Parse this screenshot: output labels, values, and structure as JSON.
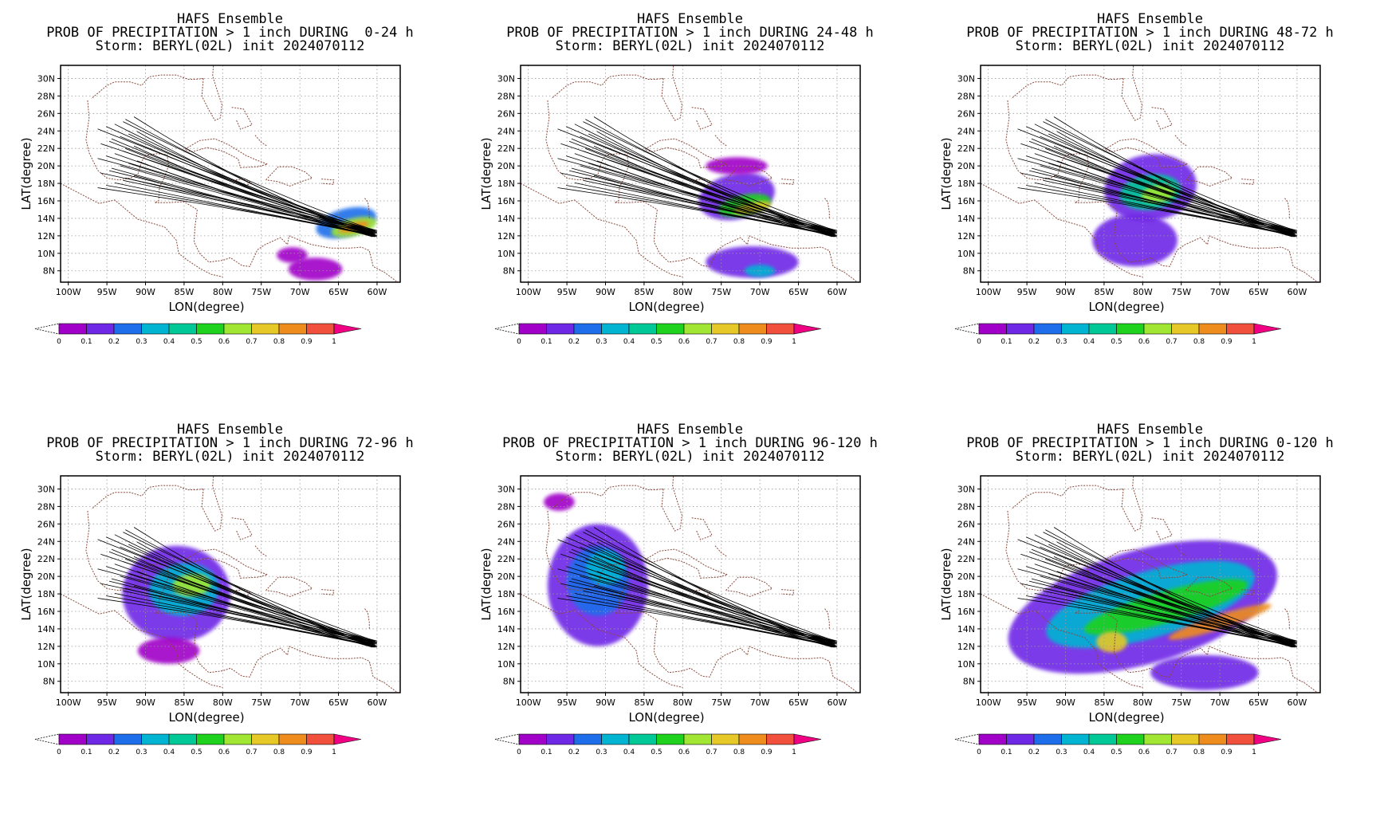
{
  "map": {
    "lon_ticks": [
      "100W",
      "95W",
      "90W",
      "85W",
      "80W",
      "75W",
      "70W",
      "65W",
      "60W"
    ],
    "lat_ticks": [
      "8N",
      "10N",
      "12N",
      "14N",
      "16N",
      "18N",
      "20N",
      "22N",
      "24N",
      "26N",
      "28N",
      "30N"
    ],
    "xlabel": "LON(degree)",
    "ylabel": "LAT(degree)",
    "lon_range": [
      -101,
      -57
    ],
    "lat_range": [
      6.7,
      31.5
    ],
    "colorbar": {
      "labels": [
        "0",
        "0.1",
        "0.2",
        "0.3",
        "0.4",
        "0.5",
        "0.6",
        "0.7",
        "0.8",
        "0.9",
        "1"
      ],
      "colors": [
        "#a000c8",
        "#6e28e6",
        "#1e6eeb",
        "#00b4d2",
        "#00c896",
        "#1ed21e",
        "#a0e632",
        "#e6c828",
        "#ee8c1e",
        "#f0503c",
        "#f00082"
      ]
    }
  },
  "panels": [
    {
      "title1": "HAFS Ensemble",
      "title2": "PROB OF PRECIPITATION > 1 inch DURING  0-24 h",
      "title3": "Storm: BERYL(02L) init 2024070112",
      "rain": [
        {
          "lon": -64,
          "lat": 13.5,
          "rlon": 4.0,
          "rlat": 1.6,
          "rot": -15,
          "p": 0.25
        },
        {
          "lon": -63,
          "lat": 13.0,
          "rlon": 3.0,
          "rlat": 1.0,
          "rot": -15,
          "p": 0.6
        },
        {
          "lon": -63,
          "lat": 13.0,
          "rlon": 2.0,
          "rlat": 0.5,
          "rot": -15,
          "p": 0.85
        },
        {
          "lon": -68,
          "lat": 8.2,
          "rlon": 3.5,
          "rlat": 1.3,
          "rot": 0,
          "p": 0.08
        },
        {
          "lon": -71,
          "lat": 9.8,
          "rlon": 2.0,
          "rlat": 0.9,
          "rot": 0,
          "p": 0.06
        }
      ]
    },
    {
      "title1": "HAFS Ensemble",
      "title2": "PROB OF PRECIPITATION > 1 inch DURING 24-48 h",
      "title3": "Storm: BERYL(02L) init 2024070112",
      "rain": [
        {
          "lon": -73,
          "lat": 16.5,
          "rlon": 5.0,
          "rlat": 2.6,
          "rot": -12,
          "p": 0.15
        },
        {
          "lon": -72,
          "lat": 15.5,
          "rlon": 3.5,
          "rlat": 1.2,
          "rot": -12,
          "p": 0.5
        },
        {
          "lon": -71,
          "lat": 15.2,
          "rlon": 2.5,
          "rlat": 0.6,
          "rot": -12,
          "p": 0.75
        },
        {
          "lon": -71,
          "lat": 9.0,
          "rlon": 6.0,
          "rlat": 1.8,
          "rot": 0,
          "p": 0.1
        },
        {
          "lon": -70,
          "lat": 8.0,
          "rlon": 2.0,
          "rlat": 0.7,
          "rot": 0,
          "p": 0.35
        },
        {
          "lon": -73,
          "lat": 20.0,
          "rlon": 4.0,
          "rlat": 1.0,
          "rot": 0,
          "p": 0.06
        }
      ]
    },
    {
      "title1": "HAFS Ensemble",
      "title2": "PROB OF PRECIPITATION > 1 inch DURING 48-72 h",
      "title3": "Storm: BERYL(02L) init 2024070112",
      "rain": [
        {
          "lon": -79,
          "lat": 17.5,
          "rlon": 6.0,
          "rlat": 3.8,
          "rot": -8,
          "p": 0.15
        },
        {
          "lon": -79,
          "lat": 17.0,
          "rlon": 4.0,
          "rlat": 2.0,
          "rot": -8,
          "p": 0.4
        },
        {
          "lon": -78,
          "lat": 16.8,
          "rlon": 2.2,
          "rlat": 1.0,
          "rot": -8,
          "p": 0.65
        },
        {
          "lon": -81,
          "lat": 11.5,
          "rlon": 5.5,
          "rlat": 3.0,
          "rot": 0,
          "p": 0.1
        }
      ]
    },
    {
      "title1": "HAFS Ensemble",
      "title2": "PROB OF PRECIPITATION > 1 inch DURING 72-96 h",
      "title3": "Storm: BERYL(02L) init 2024070112",
      "rain": [
        {
          "lon": -86,
          "lat": 18.0,
          "rlon": 7.0,
          "rlat": 5.5,
          "rot": 0,
          "p": 0.12
        },
        {
          "lon": -85,
          "lat": 18.5,
          "rlon": 4.5,
          "rlat": 3.0,
          "rot": -5,
          "p": 0.35
        },
        {
          "lon": -84,
          "lat": 19.0,
          "rlon": 2.5,
          "rlat": 1.3,
          "rot": -5,
          "p": 0.6
        },
        {
          "lon": -87,
          "lat": 11.5,
          "rlon": 4.0,
          "rlat": 1.5,
          "rot": 0,
          "p": 0.08
        }
      ]
    },
    {
      "title1": "HAFS Ensemble",
      "title2": "PROB OF PRECIPITATION > 1 inch DURING 96-120 h",
      "title3": "Storm: BERYL(02L) init 2024070112",
      "rain": [
        {
          "lon": -91,
          "lat": 19.0,
          "rlon": 6.5,
          "rlat": 7.0,
          "rot": 0,
          "p": 0.12
        },
        {
          "lon": -91,
          "lat": 19.5,
          "rlon": 4.0,
          "rlat": 4.0,
          "rot": 0,
          "p": 0.25
        },
        {
          "lon": -90,
          "lat": 21.0,
          "rlon": 2.5,
          "rlat": 2.0,
          "rot": 0,
          "p": 0.35
        },
        {
          "lon": -96,
          "lat": 28.5,
          "rlon": 2.0,
          "rlat": 1.0,
          "rot": 0,
          "p": 0.06
        }
      ]
    },
    {
      "title1": "HAFS Ensemble",
      "title2": "PROB OF PRECIPITATION > 1 inch DURING 0-120 h",
      "title3": "Storm: BERYL(02L) init 2024070112",
      "rain": [
        {
          "lon": -80,
          "lat": 16.5,
          "rlon": 18.0,
          "rlat": 6.5,
          "rot": -16,
          "p": 0.12
        },
        {
          "lon": -79,
          "lat": 16.8,
          "rlon": 14.0,
          "rlat": 3.8,
          "rot": -16,
          "p": 0.3
        },
        {
          "lon": -77,
          "lat": 16.5,
          "rlon": 11.0,
          "rlat": 1.8,
          "rot": -16,
          "p": 0.55
        },
        {
          "lon": -70,
          "lat": 14.8,
          "rlon": 7.0,
          "rlat": 0.8,
          "rot": -18,
          "p": 0.85
        },
        {
          "lon": -84,
          "lat": 12.5,
          "rlon": 2.0,
          "rlat": 1.2,
          "rot": 0,
          "p": 0.7
        },
        {
          "lon": -72,
          "lat": 9.0,
          "rlon": 7.0,
          "rlat": 2.0,
          "rot": 0,
          "p": 0.15
        }
      ]
    }
  ]
}
